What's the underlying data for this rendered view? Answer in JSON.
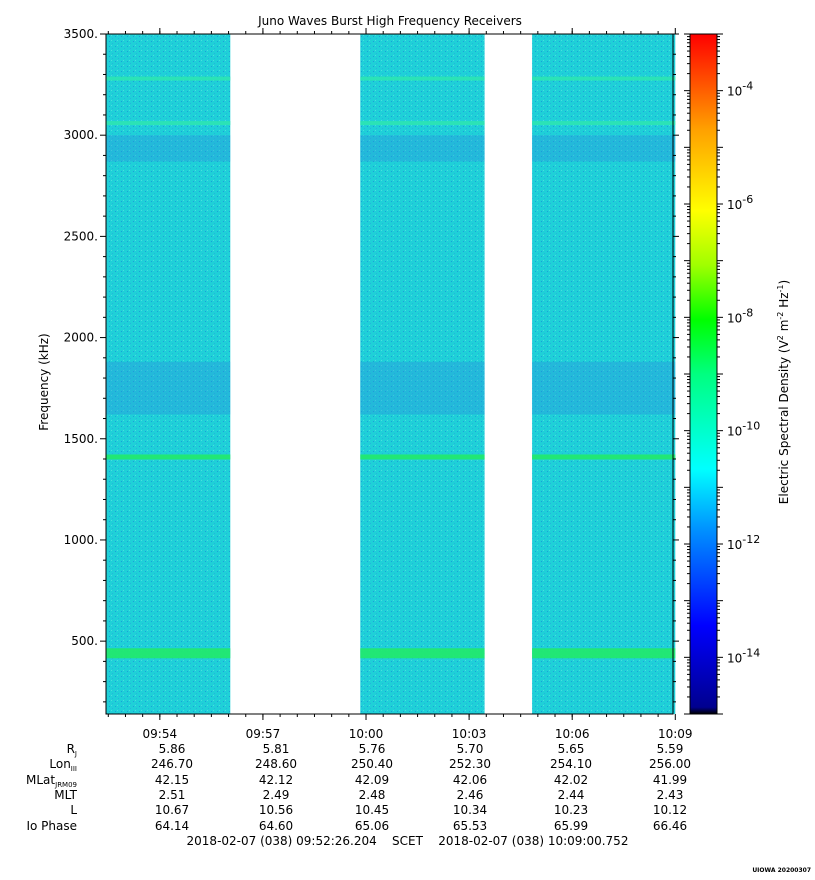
{
  "chart_data": {
    "type": "heatmap",
    "title": "Juno Waves Burst High Frequency Receivers",
    "ylabel": "Frequency (kHz)",
    "ylim": [
      140,
      3500
    ],
    "yticks": [
      500,
      1000,
      1500,
      2000,
      2500,
      3000,
      3500
    ],
    "ytick_labels": [
      "500.",
      "1000.",
      "1500.",
      "2000.",
      "2500.",
      "3000.",
      "3500."
    ],
    "x_range_minutes": [
      0,
      16.5
    ],
    "xtick_labels": [
      "09:54",
      "09:57",
      "10:00",
      "10:03",
      "10:06",
      "10:09"
    ],
    "data_segments": [
      {
        "start": "09:52:26",
        "end": "09:56:03"
      },
      {
        "start": "09:59:50",
        "end": "10:03:27"
      },
      {
        "start": "10:04:50",
        "end": "10:09:00"
      }
    ],
    "bands_khz": [
      440,
      1410,
      3060,
      3280
    ],
    "colorbar": {
      "label": "Electric Spectral Density (V² m⁻² Hz⁻¹)",
      "scale": "log",
      "range_exp": [
        -15,
        -3
      ],
      "tick_exponents": [
        -4,
        -6,
        -8,
        -10,
        -12,
        -14
      ],
      "tick_labels": [
        "10-4",
        "10-6",
        "10-8",
        "10-10",
        "10-12",
        "10-14"
      ]
    },
    "dominant_level": "10-12"
  },
  "ephemeris": {
    "labels": [
      "Rj",
      "LonIII",
      "MLatJRM09",
      "MLT",
      "L",
      "Io Phase"
    ],
    "label_text": {
      "rj": {
        "main": "R",
        "sub": "J"
      },
      "lon": {
        "main": "Lon",
        "sub": "III"
      },
      "mlat": {
        "main": "MLat",
        "sub": "JRM09"
      }
    },
    "rows": [
      {
        "name": "Rj",
        "values": [
          "5.86",
          "5.81",
          "5.76",
          "5.70",
          "5.65",
          "5.59"
        ]
      },
      {
        "name": "LonIII",
        "values": [
          "246.70",
          "248.60",
          "250.40",
          "252.30",
          "254.10",
          "256.00"
        ]
      },
      {
        "name": "MLatJRM09",
        "values": [
          "42.15",
          "42.12",
          "42.09",
          "42.06",
          "42.02",
          "41.99"
        ]
      },
      {
        "name": "MLT",
        "values": [
          "2.51",
          "2.49",
          "2.48",
          "2.46",
          "2.44",
          "2.43"
        ]
      },
      {
        "name": "L",
        "values": [
          "10.67",
          "10.56",
          "10.45",
          "10.34",
          "10.23",
          "10.12"
        ]
      },
      {
        "name": "Io Phase",
        "values": [
          "64.14",
          "64.60",
          "65.06",
          "65.53",
          "65.99",
          "66.46"
        ]
      }
    ],
    "mlt_label": "MLT",
    "l_label": "L",
    "io_label": "Io Phase"
  },
  "footer": "2018-02-07 (038) 09:52:26.204    SCET    2018-02-07 (038) 10:09:00.752",
  "stamp": "UIOWA 20200307"
}
